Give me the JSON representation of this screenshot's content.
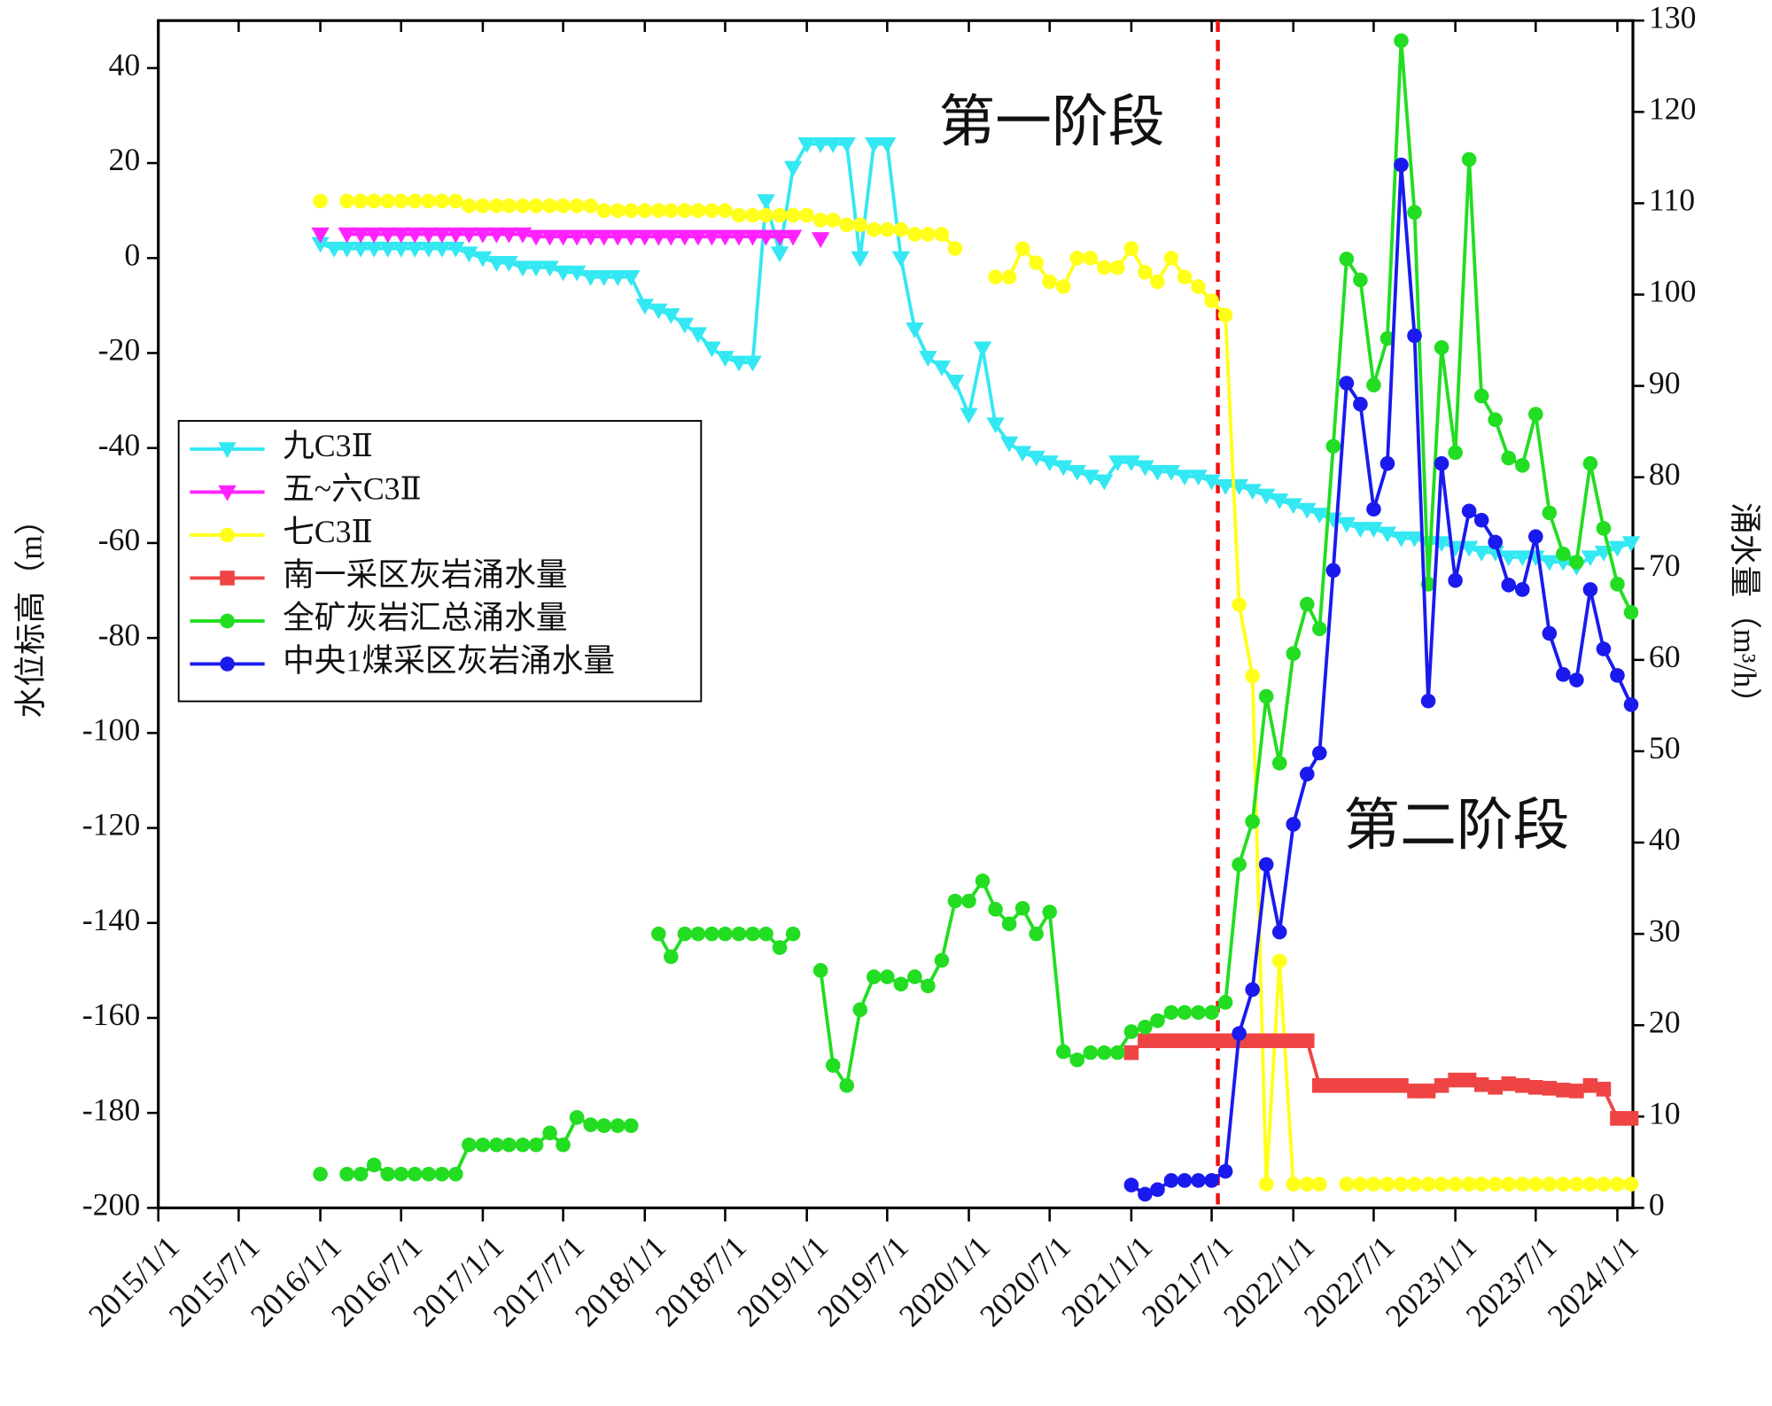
{
  "chart_data": {
    "type": "line",
    "xlabel": "",
    "ylabel": "水位标高（m）",
    "y2label": "涌水量（m³/h）",
    "annotations": [
      "第一阶段",
      "第二阶段"
    ],
    "annotation_color": "#ee1111",
    "divider_x": "2021-07-15",
    "divider_color": "#ee1111",
    "legend": "center-left",
    "xlim": [
      "2015-01-01",
      "2024-02-05"
    ],
    "xticks": [
      {
        "value": "2015-01-01",
        "label": "2015/1/1"
      },
      {
        "value": "2015-07-01",
        "label": "2015/7/1"
      },
      {
        "value": "2016-01-01",
        "label": "2016/1/1"
      },
      {
        "value": "2016-07-01",
        "label": "2016/7/1"
      },
      {
        "value": "2017-01-01",
        "label": "2017/1/1"
      },
      {
        "value": "2017-07-01",
        "label": "2017/7/1"
      },
      {
        "value": "2018-01-01",
        "label": "2018/1/1"
      },
      {
        "value": "2018-07-01",
        "label": "2018/7/1"
      },
      {
        "value": "2019-01-01",
        "label": "2019/1/1"
      },
      {
        "value": "2019-07-01",
        "label": "2019/7/1"
      },
      {
        "value": "2020-01-01",
        "label": "2020/1/1"
      },
      {
        "value": "2020-07-01",
        "label": "2020/7/1"
      },
      {
        "value": "2021-01-01",
        "label": "2021/1/1"
      },
      {
        "value": "2021-07-01",
        "label": "2021/7/1"
      },
      {
        "value": "2022-01-01",
        "label": "2022/1/1"
      },
      {
        "value": "2022-07-01",
        "label": "2022/7/1"
      },
      {
        "value": "2023-01-01",
        "label": "2023/1/1"
      },
      {
        "value": "2023-07-01",
        "label": "2023/7/1"
      },
      {
        "value": "2024-01-01",
        "label": "2024/1/1"
      }
    ],
    "ylim": [
      -200,
      50
    ],
    "yticks": [
      -200,
      -180,
      -160,
      -140,
      -120,
      -100,
      -80,
      -60,
      -40,
      -20,
      0,
      20,
      40
    ],
    "y2lim": [
      0,
      130
    ],
    "y2ticks": [
      0,
      10,
      20,
      30,
      40,
      50,
      60,
      70,
      80,
      90,
      100,
      110,
      120,
      130
    ],
    "x": [
      "2016-01-01",
      "2016-02-01",
      "2016-03-01",
      "2016-04-01",
      "2016-05-01",
      "2016-06-01",
      "2016-07-01",
      "2016-08-01",
      "2016-09-01",
      "2016-10-01",
      "2016-11-01",
      "2016-12-01",
      "2017-01-01",
      "2017-02-01",
      "2017-03-01",
      "2017-04-01",
      "2017-05-01",
      "2017-06-01",
      "2017-07-01",
      "2017-08-01",
      "2017-09-01",
      "2017-10-01",
      "2017-11-01",
      "2017-12-01",
      "2018-01-01",
      "2018-02-01",
      "2018-03-01",
      "2018-04-01",
      "2018-05-01",
      "2018-06-01",
      "2018-07-01",
      "2018-08-01",
      "2018-09-01",
      "2018-10-01",
      "2018-11-01",
      "2018-12-01",
      "2019-01-01",
      "2019-02-01",
      "2019-03-01",
      "2019-04-01",
      "2019-05-01",
      "2019-06-01",
      "2019-07-01",
      "2019-08-01",
      "2019-09-01",
      "2019-10-01",
      "2019-11-01",
      "2019-12-01",
      "2020-01-01",
      "2020-02-01",
      "2020-03-01",
      "2020-04-01",
      "2020-05-01",
      "2020-06-01",
      "2020-07-01",
      "2020-08-01",
      "2020-09-01",
      "2020-10-01",
      "2020-11-01",
      "2020-12-01",
      "2021-01-01",
      "2021-02-01",
      "2021-03-01",
      "2021-04-01",
      "2021-05-01",
      "2021-06-01",
      "2021-07-01",
      "2021-08-01",
      "2021-09-01",
      "2021-10-01",
      "2021-11-01",
      "2021-12-01",
      "2022-01-01",
      "2022-02-01",
      "2022-03-01",
      "2022-04-01",
      "2022-05-01",
      "2022-06-01",
      "2022-07-01",
      "2022-08-01",
      "2022-09-01",
      "2022-10-01",
      "2022-11-01",
      "2022-12-01",
      "2023-01-01",
      "2023-02-01",
      "2023-03-01",
      "2023-04-01",
      "2023-05-01",
      "2023-06-01",
      "2023-07-01",
      "2023-08-01",
      "2023-09-01",
      "2023-10-01",
      "2023-11-01",
      "2023-12-01",
      "2024-01-01",
      "2024-02-01"
    ],
    "series": [
      {
        "name": "九C3Ⅱ",
        "color": "#33e8f2",
        "marker": "triangle-down",
        "values": [
          3,
          2,
          2,
          2,
          2,
          2,
          2,
          2,
          2,
          2,
          2,
          1,
          0,
          -1,
          -1,
          -2,
          -2,
          -2,
          -3,
          -3,
          -4,
          -4,
          -4,
          -4,
          -10,
          -11,
          -12,
          -14,
          -16,
          -19,
          -21,
          -22,
          -22,
          12,
          1,
          19,
          24,
          24,
          24,
          24,
          0,
          24,
          24,
          0,
          -15,
          -21,
          -23,
          -26,
          -33,
          -19,
          -35,
          -39,
          -41,
          -42,
          -43,
          -44,
          -45,
          -46,
          -47,
          -43,
          -43,
          -44,
          -45,
          -45,
          -46,
          -46,
          -47,
          -48,
          -48,
          -49,
          -50,
          -51,
          -52,
          -53,
          -54,
          -55,
          -56,
          -57,
          -57,
          -58,
          -59,
          -59,
          -60,
          -60,
          -61,
          -61,
          -62,
          -62,
          -63,
          -63,
          -63,
          -64,
          -64,
          -65,
          -63,
          -62,
          -61,
          -60
        ]
      },
      {
        "name": "五~六C3Ⅱ",
        "color": "#ff22ff",
        "marker": "triangle-down",
        "values": [
          5,
          null,
          5,
          5,
          5,
          5,
          5,
          5,
          5,
          5,
          5,
          5,
          5,
          5,
          5,
          5,
          4.5,
          4.5,
          4.5,
          4.5,
          4.5,
          4.5,
          4.5,
          4.5,
          4.5,
          4.5,
          4.5,
          4.5,
          4.5,
          4.5,
          4.5,
          4.5,
          4.5,
          4.5,
          4.5,
          4.5,
          null,
          4,
          null,
          null,
          null,
          null,
          null,
          null,
          null,
          null,
          null,
          null,
          null,
          null,
          null,
          null,
          null,
          null,
          null,
          null,
          null,
          null,
          null,
          null,
          null,
          null,
          null,
          null,
          null,
          null,
          null,
          null,
          null,
          null,
          null,
          null,
          null,
          null,
          null,
          null,
          null,
          null,
          null,
          null,
          null,
          null,
          null,
          null,
          null,
          null,
          null,
          null,
          null,
          null,
          null,
          null,
          null,
          null,
          null,
          null,
          null,
          null
        ]
      },
      {
        "name": "七C3Ⅱ",
        "color": "#ffff1a",
        "marker": "circle",
        "values": [
          12,
          null,
          12,
          12,
          12,
          12,
          12,
          12,
          12,
          12,
          12,
          11,
          11,
          11,
          11,
          11,
          11,
          11,
          11,
          11,
          11,
          10,
          10,
          10,
          10,
          10,
          10,
          10,
          10,
          10,
          10,
          9,
          9,
          9,
          9,
          9,
          9,
          8,
          8,
          7,
          7,
          6,
          6,
          6,
          5,
          5,
          5,
          2,
          null,
          null,
          -4,
          -4,
          2,
          -1,
          -5,
          -6,
          0,
          0,
          -2,
          -2,
          2,
          -3,
          -5,
          0,
          -4,
          -6,
          -9,
          -12,
          -73,
          -88,
          -195,
          -148,
          -195,
          -195,
          -195,
          null,
          -195,
          -195,
          -195,
          -195,
          -195,
          -195,
          -195,
          -195,
          -195,
          -195,
          -195,
          -195,
          -195,
          -195,
          -195,
          -195,
          -195,
          -195,
          -195,
          -195,
          -195,
          -195
        ]
      },
      {
        "name": "南一采区灰岩涌水量",
        "color": "#ee4444",
        "marker": "square",
        "axis": "y2",
        "values": [
          null,
          null,
          null,
          null,
          null,
          null,
          null,
          null,
          null,
          null,
          null,
          null,
          null,
          null,
          null,
          null,
          null,
          null,
          null,
          null,
          null,
          null,
          null,
          null,
          null,
          null,
          null,
          null,
          null,
          null,
          null,
          null,
          null,
          null,
          null,
          null,
          null,
          null,
          null,
          null,
          null,
          null,
          null,
          null,
          null,
          null,
          null,
          null,
          null,
          null,
          null,
          null,
          null,
          null,
          null,
          null,
          null,
          null,
          null,
          null,
          17,
          18.3,
          18.3,
          18.3,
          18.3,
          18.3,
          18.3,
          18.3,
          18.3,
          18.3,
          18.3,
          18.3,
          18.3,
          18.3,
          13.4,
          13.4,
          13.4,
          13.4,
          13.4,
          13.4,
          13.4,
          12.8,
          12.8,
          13.4,
          14,
          14,
          13.5,
          13.2,
          13.6,
          13.4,
          13.2,
          13.1,
          12.9,
          12.8,
          13.4,
          13,
          9.8,
          9.8
        ]
      },
      {
        "name": "全矿灰岩汇总涌水量",
        "color": "#22dd22",
        "marker": "circle",
        "axis": "y2",
        "values": [
          3.7,
          null,
          3.7,
          3.7,
          4.7,
          3.7,
          3.7,
          3.7,
          3.7,
          3.7,
          3.7,
          6.9,
          6.9,
          6.9,
          6.9,
          6.9,
          6.9,
          8.2,
          6.9,
          9.9,
          9.1,
          9,
          9,
          9,
          null,
          30,
          27.5,
          30,
          30,
          30,
          30,
          30,
          30,
          30,
          28.5,
          30,
          null,
          26,
          15.6,
          13.4,
          21.7,
          25.3,
          25.3,
          24.5,
          25.3,
          24.3,
          27.1,
          33.6,
          33.6,
          35.8,
          32.7,
          31.1,
          32.8,
          30,
          32.4,
          17.1,
          16.2,
          17,
          17,
          17,
          19.3,
          19.8,
          20.5,
          21.4,
          21.4,
          21.4,
          21.4,
          22.5,
          37.6,
          42.3,
          56,
          48.7,
          60.7,
          66.1,
          63.4,
          83.4,
          103.9,
          101.6,
          90.1,
          95.2,
          127.8,
          109,
          68.3,
          94.2,
          82.7,
          114.8,
          88.9,
          86.3,
          82.1,
          81.3,
          86.9,
          76.1,
          71.6,
          70.7,
          81.5,
          74.4,
          68.3,
          65.2
        ]
      },
      {
        "name": "中央1煤采区灰岩涌水量",
        "color": "#1a1aee",
        "marker": "circle",
        "axis": "y2",
        "values": [
          null,
          null,
          null,
          null,
          null,
          null,
          null,
          null,
          null,
          null,
          null,
          null,
          null,
          null,
          null,
          null,
          null,
          null,
          null,
          null,
          null,
          null,
          null,
          null,
          null,
          null,
          null,
          null,
          null,
          null,
          null,
          null,
          null,
          null,
          null,
          null,
          null,
          null,
          null,
          null,
          null,
          null,
          null,
          null,
          null,
          null,
          null,
          null,
          null,
          null,
          null,
          null,
          null,
          null,
          null,
          null,
          null,
          null,
          null,
          null,
          2.5,
          1.5,
          2,
          3,
          3,
          3,
          3,
          4,
          19.1,
          23.9,
          37.6,
          30.2,
          42,
          47.5,
          49.8,
          69.8,
          90.3,
          88,
          76.5,
          81.5,
          114.2,
          95.5,
          55.5,
          81.5,
          68.7,
          76.3,
          75.3,
          72.9,
          68.2,
          67.7,
          73.5,
          62.9,
          58.4,
          57.8,
          67.7,
          61.2,
          58.3,
          55.1
        ]
      }
    ]
  }
}
